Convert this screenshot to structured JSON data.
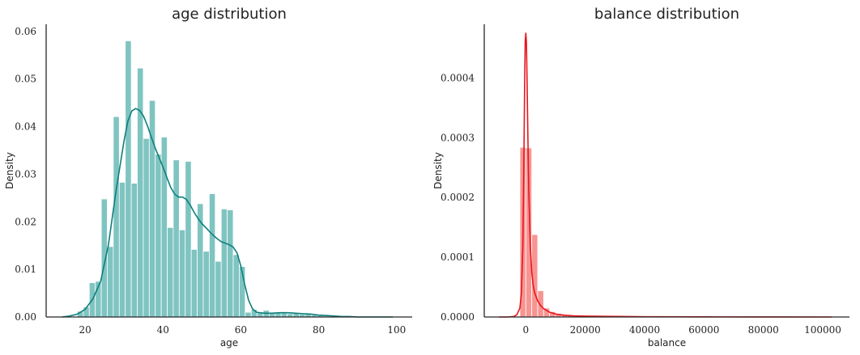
{
  "chart_data": [
    {
      "type": "histogram",
      "title": "age distribution",
      "xlabel": "age",
      "ylabel": "Density",
      "xlim": [
        10,
        104
      ],
      "ylim": [
        0,
        0.0615
      ],
      "xticks": [
        "20",
        "40",
        "60",
        "80",
        "100"
      ],
      "yticks": [
        "0.00",
        "0.01",
        "0.02",
        "0.03",
        "0.04",
        "0.05",
        "0.06"
      ],
      "bar_color": "#7fc4c1",
      "kde_color": "#0e7f7b",
      "bin_edges": [
        18,
        19.54,
        21.08,
        22.62,
        24.16,
        25.7,
        27.24,
        28.78,
        30.32,
        31.86,
        33.4,
        34.94,
        36.48,
        38.02,
        39.56,
        41.1,
        42.64,
        44.18,
        45.72,
        47.26,
        48.8,
        50.34,
        51.88,
        53.42,
        54.96,
        56.5,
        58.04,
        59.58,
        61.12,
        62.66,
        64.2,
        65.74,
        67.28,
        68.82,
        70.36,
        71.9,
        73.44,
        74.98,
        76.52,
        78.06,
        79.6,
        81.14,
        82.68,
        84.22,
        85.76,
        87.3
      ],
      "values": [
        0.0012,
        0.0021,
        0.0072,
        0.0075,
        0.0248,
        0.0148,
        0.0421,
        0.0283,
        0.058,
        0.0281,
        0.0523,
        0.0375,
        0.0455,
        0.0342,
        0.0378,
        0.0188,
        0.033,
        0.0183,
        0.0327,
        0.0142,
        0.0238,
        0.0138,
        0.0259,
        0.0117,
        0.0227,
        0.0225,
        0.0131,
        0.0106,
        0.001,
        0.0016,
        0.001,
        0.0014,
        0.0008,
        0.001,
        0.0009,
        0.0007,
        0.0009,
        0.0006,
        0.0007,
        0.0004,
        0.0003,
        0.0002,
        0.0001,
        0.0001,
        0.0001
      ],
      "kde": {
        "x": [
          14,
          16,
          18,
          20,
          22,
          24,
          26,
          28,
          30,
          31,
          32,
          33,
          34,
          35,
          36,
          37,
          38,
          39,
          40,
          41,
          42,
          43,
          44,
          45,
          46,
          47,
          48,
          49,
          50,
          51,
          52,
          53,
          54,
          55,
          56,
          57,
          58,
          59,
          60,
          61,
          62,
          63,
          64,
          66,
          68,
          70,
          72,
          74,
          76,
          78,
          80,
          82,
          84,
          86,
          88,
          90,
          94,
          99
        ],
        "y": [
          0.0,
          0.0002,
          0.0006,
          0.0016,
          0.0038,
          0.0075,
          0.0152,
          0.0268,
          0.037,
          0.0412,
          0.0433,
          0.0438,
          0.0434,
          0.0422,
          0.0402,
          0.0378,
          0.0355,
          0.0335,
          0.0315,
          0.0293,
          0.0272,
          0.0258,
          0.0252,
          0.0252,
          0.0247,
          0.0235,
          0.022,
          0.0207,
          0.0196,
          0.0188,
          0.0179,
          0.0171,
          0.0164,
          0.0158,
          0.0155,
          0.0152,
          0.0147,
          0.0135,
          0.0107,
          0.0068,
          0.0035,
          0.0017,
          0.001,
          0.0008,
          0.0008,
          0.0009,
          0.0009,
          0.0008,
          0.0007,
          0.0006,
          0.0004,
          0.0003,
          0.0002,
          0.0001,
          0.0001,
          0.0,
          0.0,
          0.0
        ]
      }
    },
    {
      "type": "histogram",
      "title": "balance distribution",
      "xlabel": "balance",
      "ylabel": "Density",
      "xlim": [
        -14000,
        109000
      ],
      "ylim": [
        0,
        0.00049
      ],
      "xticks": [
        "0",
        "20000",
        "40000",
        "60000",
        "80000",
        "100000"
      ],
      "yticks": [
        "0.0000",
        "0.0001",
        "0.0002",
        "0.0003",
        "0.0004"
      ],
      "bar_color": "#f79592",
      "kde_color": "#e8161e",
      "bin_edges": [
        -2000,
        0,
        2000,
        4000,
        6000,
        8000,
        10000,
        12000,
        14000,
        16000,
        18000,
        20000
      ],
      "values": [
        0.000284,
        0.000283,
        0.000138,
        4.4e-05,
        1.5e-05,
        9e-06,
        6e-06,
        4e-06,
        3e-06,
        2e-06,
        1e-06
      ],
      "kde": {
        "x": [
          -9000,
          -6000,
          -4000,
          -3000,
          -2000,
          -1500,
          -1000,
          -700,
          -400,
          -200,
          0,
          200,
          400,
          700,
          1000,
          1500,
          2000,
          2500,
          3000,
          4000,
          5000,
          6000,
          8000,
          10000,
          13000,
          16000,
          20000,
          30000,
          40000,
          60000,
          80000,
          103000
        ],
        "y": [
          0.0,
          0.0,
          1e-06,
          4e-06,
          1.5e-05,
          4e-05,
          0.00012,
          0.00024,
          0.00039,
          0.000462,
          0.000475,
          0.00046,
          0.0004,
          0.0003,
          0.00021,
          0.00012,
          7.5e-05,
          5.2e-05,
          4e-05,
          2.7e-05,
          1.9e-05,
          1.4e-05,
          8e-06,
          5e-06,
          3e-06,
          2e-06,
          1.5e-06,
          1e-06,
          5e-07,
          2e-07,
          1e-07,
          0.0
        ]
      }
    }
  ]
}
